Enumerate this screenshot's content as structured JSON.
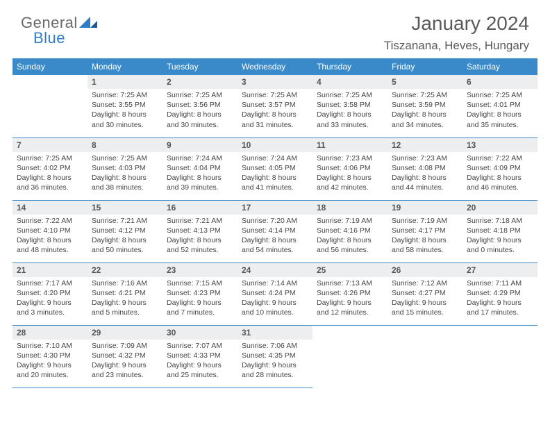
{
  "logo": {
    "part1": "General",
    "part2": "Blue"
  },
  "title": "January 2024",
  "location": "Tiszanana, Heves, Hungary",
  "colors": {
    "header_bg": "#3a8ac9",
    "header_text": "#ffffff",
    "daynum_bg": "#eceeef",
    "border": "#3a8ac9",
    "logo_general": "#6a6a6a",
    "logo_blue": "#2f7bc4",
    "title_color": "#5a5a5a"
  },
  "day_headers": [
    "Sunday",
    "Monday",
    "Tuesday",
    "Wednesday",
    "Thursday",
    "Friday",
    "Saturday"
  ],
  "weeks": [
    [
      {
        "n": "",
        "lines": []
      },
      {
        "n": "1",
        "lines": [
          "Sunrise: 7:25 AM",
          "Sunset: 3:55 PM",
          "Daylight: 8 hours",
          "and 30 minutes."
        ]
      },
      {
        "n": "2",
        "lines": [
          "Sunrise: 7:25 AM",
          "Sunset: 3:56 PM",
          "Daylight: 8 hours",
          "and 30 minutes."
        ]
      },
      {
        "n": "3",
        "lines": [
          "Sunrise: 7:25 AM",
          "Sunset: 3:57 PM",
          "Daylight: 8 hours",
          "and 31 minutes."
        ]
      },
      {
        "n": "4",
        "lines": [
          "Sunrise: 7:25 AM",
          "Sunset: 3:58 PM",
          "Daylight: 8 hours",
          "and 33 minutes."
        ]
      },
      {
        "n": "5",
        "lines": [
          "Sunrise: 7:25 AM",
          "Sunset: 3:59 PM",
          "Daylight: 8 hours",
          "and 34 minutes."
        ]
      },
      {
        "n": "6",
        "lines": [
          "Sunrise: 7:25 AM",
          "Sunset: 4:01 PM",
          "Daylight: 8 hours",
          "and 35 minutes."
        ]
      }
    ],
    [
      {
        "n": "7",
        "lines": [
          "Sunrise: 7:25 AM",
          "Sunset: 4:02 PM",
          "Daylight: 8 hours",
          "and 36 minutes."
        ]
      },
      {
        "n": "8",
        "lines": [
          "Sunrise: 7:25 AM",
          "Sunset: 4:03 PM",
          "Daylight: 8 hours",
          "and 38 minutes."
        ]
      },
      {
        "n": "9",
        "lines": [
          "Sunrise: 7:24 AM",
          "Sunset: 4:04 PM",
          "Daylight: 8 hours",
          "and 39 minutes."
        ]
      },
      {
        "n": "10",
        "lines": [
          "Sunrise: 7:24 AM",
          "Sunset: 4:05 PM",
          "Daylight: 8 hours",
          "and 41 minutes."
        ]
      },
      {
        "n": "11",
        "lines": [
          "Sunrise: 7:23 AM",
          "Sunset: 4:06 PM",
          "Daylight: 8 hours",
          "and 42 minutes."
        ]
      },
      {
        "n": "12",
        "lines": [
          "Sunrise: 7:23 AM",
          "Sunset: 4:08 PM",
          "Daylight: 8 hours",
          "and 44 minutes."
        ]
      },
      {
        "n": "13",
        "lines": [
          "Sunrise: 7:22 AM",
          "Sunset: 4:09 PM",
          "Daylight: 8 hours",
          "and 46 minutes."
        ]
      }
    ],
    [
      {
        "n": "14",
        "lines": [
          "Sunrise: 7:22 AM",
          "Sunset: 4:10 PM",
          "Daylight: 8 hours",
          "and 48 minutes."
        ]
      },
      {
        "n": "15",
        "lines": [
          "Sunrise: 7:21 AM",
          "Sunset: 4:12 PM",
          "Daylight: 8 hours",
          "and 50 minutes."
        ]
      },
      {
        "n": "16",
        "lines": [
          "Sunrise: 7:21 AM",
          "Sunset: 4:13 PM",
          "Daylight: 8 hours",
          "and 52 minutes."
        ]
      },
      {
        "n": "17",
        "lines": [
          "Sunrise: 7:20 AM",
          "Sunset: 4:14 PM",
          "Daylight: 8 hours",
          "and 54 minutes."
        ]
      },
      {
        "n": "18",
        "lines": [
          "Sunrise: 7:19 AM",
          "Sunset: 4:16 PM",
          "Daylight: 8 hours",
          "and 56 minutes."
        ]
      },
      {
        "n": "19",
        "lines": [
          "Sunrise: 7:19 AM",
          "Sunset: 4:17 PM",
          "Daylight: 8 hours",
          "and 58 minutes."
        ]
      },
      {
        "n": "20",
        "lines": [
          "Sunrise: 7:18 AM",
          "Sunset: 4:18 PM",
          "Daylight: 9 hours",
          "and 0 minutes."
        ]
      }
    ],
    [
      {
        "n": "21",
        "lines": [
          "Sunrise: 7:17 AM",
          "Sunset: 4:20 PM",
          "Daylight: 9 hours",
          "and 3 minutes."
        ]
      },
      {
        "n": "22",
        "lines": [
          "Sunrise: 7:16 AM",
          "Sunset: 4:21 PM",
          "Daylight: 9 hours",
          "and 5 minutes."
        ]
      },
      {
        "n": "23",
        "lines": [
          "Sunrise: 7:15 AM",
          "Sunset: 4:23 PM",
          "Daylight: 9 hours",
          "and 7 minutes."
        ]
      },
      {
        "n": "24",
        "lines": [
          "Sunrise: 7:14 AM",
          "Sunset: 4:24 PM",
          "Daylight: 9 hours",
          "and 10 minutes."
        ]
      },
      {
        "n": "25",
        "lines": [
          "Sunrise: 7:13 AM",
          "Sunset: 4:26 PM",
          "Daylight: 9 hours",
          "and 12 minutes."
        ]
      },
      {
        "n": "26",
        "lines": [
          "Sunrise: 7:12 AM",
          "Sunset: 4:27 PM",
          "Daylight: 9 hours",
          "and 15 minutes."
        ]
      },
      {
        "n": "27",
        "lines": [
          "Sunrise: 7:11 AM",
          "Sunset: 4:29 PM",
          "Daylight: 9 hours",
          "and 17 minutes."
        ]
      }
    ],
    [
      {
        "n": "28",
        "lines": [
          "Sunrise: 7:10 AM",
          "Sunset: 4:30 PM",
          "Daylight: 9 hours",
          "and 20 minutes."
        ]
      },
      {
        "n": "29",
        "lines": [
          "Sunrise: 7:09 AM",
          "Sunset: 4:32 PM",
          "Daylight: 9 hours",
          "and 23 minutes."
        ]
      },
      {
        "n": "30",
        "lines": [
          "Sunrise: 7:07 AM",
          "Sunset: 4:33 PM",
          "Daylight: 9 hours",
          "and 25 minutes."
        ]
      },
      {
        "n": "31",
        "lines": [
          "Sunrise: 7:06 AM",
          "Sunset: 4:35 PM",
          "Daylight: 9 hours",
          "and 28 minutes."
        ]
      },
      {
        "n": "",
        "lines": []
      },
      {
        "n": "",
        "lines": []
      },
      {
        "n": "",
        "lines": []
      }
    ]
  ]
}
